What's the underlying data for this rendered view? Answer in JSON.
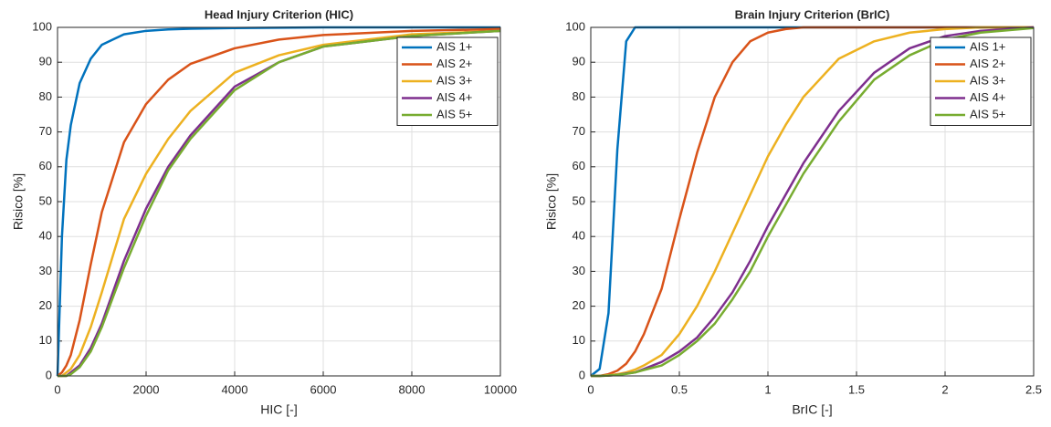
{
  "chart_data": [
    {
      "type": "line",
      "title": "Head Injury Criterion (HIC)",
      "x_label": "HIC [-]",
      "y_label": "Risico [%]",
      "x": [
        0,
        100,
        200,
        300,
        500,
        750,
        1000,
        1500,
        2000,
        2500,
        3000,
        4000,
        5000,
        6000,
        8000,
        10000
      ],
      "series": [
        {
          "name": "AIS 1+",
          "color": "#0072BD",
          "values": [
            0,
            40,
            62,
            72,
            84,
            91,
            95,
            98,
            99,
            99.4,
            99.6,
            99.8,
            99.9,
            100,
            100,
            100
          ]
        },
        {
          "name": "AIS 2+",
          "color": "#D95319",
          "values": [
            0,
            1,
            3,
            6,
            16,
            32,
            47,
            67,
            78,
            85,
            89.5,
            94,
            96.5,
            97.8,
            99,
            99.5
          ]
        },
        {
          "name": "AIS 3+",
          "color": "#EDB120",
          "values": [
            0,
            0,
            1,
            2,
            6,
            14,
            24,
            45,
            58,
            68,
            76,
            87,
            92,
            95,
            98,
            99
          ]
        },
        {
          "name": "AIS 4+",
          "color": "#7E2F8E",
          "values": [
            0,
            0,
            0,
            1,
            3,
            8,
            15,
            33,
            48,
            60,
            69,
            83,
            90,
            94.5,
            97.5,
            99
          ]
        },
        {
          "name": "AIS 5+",
          "color": "#77AC30",
          "values": [
            0,
            0,
            0,
            0.5,
            2.5,
            7,
            14,
            31,
            46,
            59,
            68,
            82,
            90,
            94.5,
            97.5,
            99
          ]
        }
      ],
      "xlim": [
        0,
        10000
      ],
      "xticks": [
        0,
        2000,
        4000,
        6000,
        8000,
        10000
      ],
      "ylim": [
        0,
        100
      ],
      "yticks": [
        0,
        10,
        20,
        30,
        40,
        50,
        60,
        70,
        80,
        90,
        100
      ],
      "grid": true,
      "legend": "top-right"
    },
    {
      "type": "line",
      "title": "Brain Injury Criterion (BrIC)",
      "x_label": "BrIC [-]",
      "y_label": "Risico [%]",
      "x": [
        0,
        0.05,
        0.1,
        0.15,
        0.2,
        0.25,
        0.3,
        0.4,
        0.5,
        0.6,
        0.7,
        0.8,
        0.9,
        1.0,
        1.1,
        1.2,
        1.4,
        1.6,
        1.8,
        2.0,
        2.2,
        2.5
      ],
      "series": [
        {
          "name": "AIS 1+",
          "color": "#0072BD",
          "values": [
            0,
            2,
            18,
            65,
            96,
            100,
            100,
            100,
            100,
            100,
            100,
            100,
            100,
            100,
            100,
            100,
            100,
            100,
            100,
            100,
            100,
            100
          ]
        },
        {
          "name": "AIS 2+",
          "color": "#D95319",
          "values": [
            0,
            0,
            0.5,
            1.5,
            3.5,
            7,
            12,
            25,
            45,
            64,
            80,
            90,
            96,
            98.5,
            99.5,
            100,
            100,
            100,
            100,
            100,
            100,
            100
          ]
        },
        {
          "name": "AIS 3+",
          "color": "#EDB120",
          "values": [
            0,
            0,
            0.2,
            0.5,
            1,
            1.8,
            3,
            6,
            12,
            20,
            30,
            41,
            52,
            63,
            72,
            80,
            91,
            96,
            98.5,
            99.5,
            100,
            100
          ]
        },
        {
          "name": "AIS 4+",
          "color": "#7E2F8E",
          "values": [
            0,
            0,
            0.1,
            0.3,
            0.7,
            1,
            2,
            4,
            7,
            11,
            17,
            24,
            33,
            43,
            52,
            61,
            76,
            87,
            94,
            97.5,
            99,
            100
          ]
        },
        {
          "name": "AIS 5+",
          "color": "#77AC30",
          "values": [
            0,
            0,
            0.1,
            0.3,
            0.6,
            1,
            1.7,
            3,
            6,
            10,
            15,
            22,
            30,
            40,
            49,
            58,
            73,
            85,
            92,
            96.5,
            98.5,
            99.8
          ]
        }
      ],
      "xlim": [
        0,
        2.5
      ],
      "xticks": [
        0,
        0.5,
        1,
        1.5,
        2,
        2.5
      ],
      "ylim": [
        0,
        100
      ],
      "yticks": [
        0,
        10,
        20,
        30,
        40,
        50,
        60,
        70,
        80,
        90,
        100
      ],
      "grid": true,
      "legend": "top-right"
    }
  ]
}
